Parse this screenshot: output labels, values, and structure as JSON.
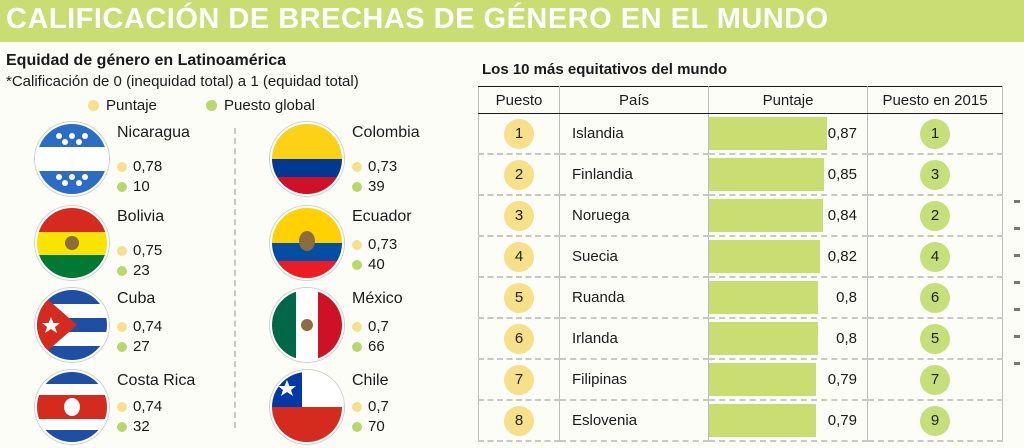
{
  "header": {
    "title": "CALIFICACIÓN DE BRECHAS DE GÉNERO EN EL MUNDO"
  },
  "latam": {
    "title": "Equidad de género en Latinoamérica",
    "subtitle": "*Calificación de 0 (inequidad total) a 1 (equidad total)",
    "legend": {
      "score": "Puntaje",
      "rank": "Puesto global"
    },
    "countries": [
      {
        "name": "Nicaragua",
        "score": "0,78",
        "rank": "10"
      },
      {
        "name": "Bolivia",
        "score": "0,75",
        "rank": "23"
      },
      {
        "name": "Cuba",
        "score": "0,74",
        "rank": "27"
      },
      {
        "name": "Costa Rica",
        "score": "0,74",
        "rank": "32"
      },
      {
        "name": "Colombia",
        "score": "0,73",
        "rank": "39"
      },
      {
        "name": "Ecuador",
        "score": "0,73",
        "rank": "40"
      },
      {
        "name": "México",
        "score": "0,7",
        "rank": "66"
      },
      {
        "name": "Chile",
        "score": "0,7",
        "rank": "70"
      }
    ]
  },
  "world": {
    "title": "Los 10 más equitativos del mundo",
    "columns": {
      "pos": "Puesto",
      "country": "País",
      "score": "Puntaje",
      "prev": "Puesto en 2015"
    },
    "rows": [
      {
        "pos": "1",
        "country": "Islandia",
        "score_label": "0,87",
        "score": 0.87,
        "prev": "1"
      },
      {
        "pos": "2",
        "country": "Finlandia",
        "score_label": "0,85",
        "score": 0.85,
        "prev": "3"
      },
      {
        "pos": "3",
        "country": "Noruega",
        "score_label": "0,84",
        "score": 0.84,
        "prev": "2"
      },
      {
        "pos": "4",
        "country": "Suecia",
        "score_label": "0,82",
        "score": 0.82,
        "prev": "4"
      },
      {
        "pos": "5",
        "country": "Ruanda",
        "score_label": "0,8",
        "score": 0.8,
        "prev": "6"
      },
      {
        "pos": "6",
        "country": "Irlanda",
        "score_label": "0,8",
        "score": 0.8,
        "prev": "5"
      },
      {
        "pos": "7",
        "country": "Filipinas",
        "score_label": "0,79",
        "score": 0.79,
        "prev": "7"
      },
      {
        "pos": "8",
        "country": "Eslovenia",
        "score_label": "0,79",
        "score": 0.79,
        "prev": "9"
      }
    ]
  },
  "colors": {
    "banner": "#c9dd73",
    "score_dot": "#f6e08a",
    "rank_dot": "#b8d96a",
    "bar": "#c9dd73"
  }
}
